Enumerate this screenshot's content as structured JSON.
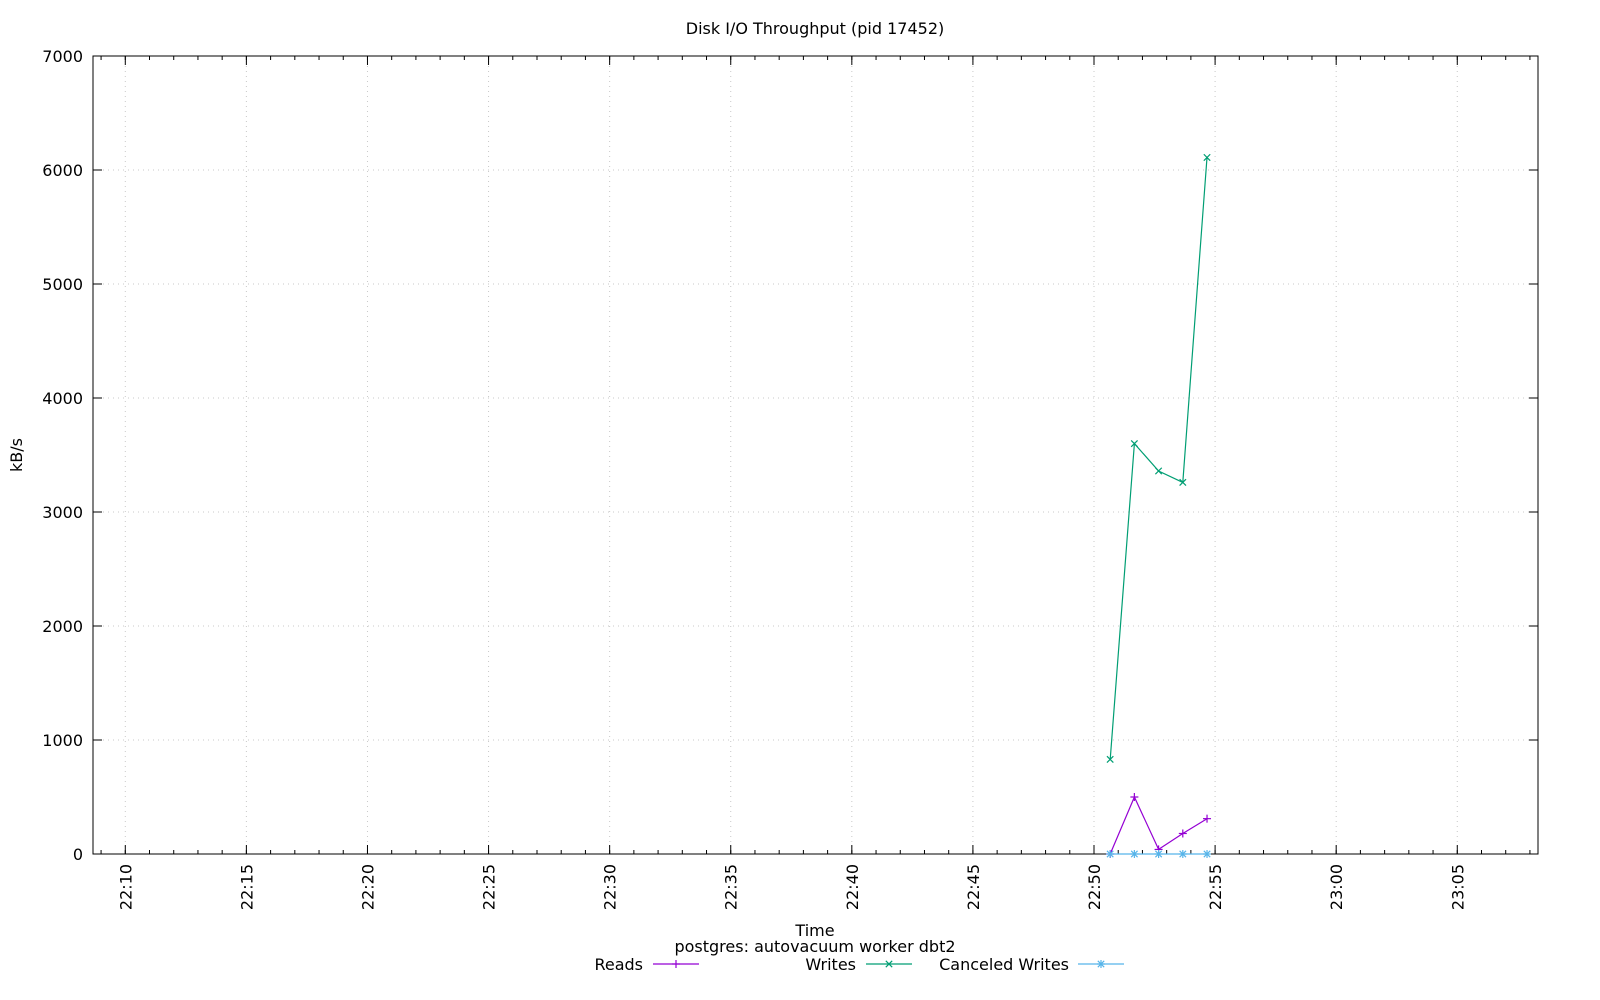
{
  "chart_data": {
    "type": "line",
    "title": "Disk I/O Throughput (pid 17452)",
    "xlabel": "Time",
    "subtitle": "postgres: autovacuum worker dbt2",
    "ylabel": "kB/s",
    "xlim": [
      "22:08:40",
      "23:08:20"
    ],
    "ylim": [
      0,
      7000
    ],
    "x_ticks": [
      "22:10",
      "22:15",
      "22:20",
      "22:25",
      "22:30",
      "22:35",
      "22:40",
      "22:45",
      "22:50",
      "22:55",
      "23:00",
      "23:05"
    ],
    "y_ticks": [
      0,
      1000,
      2000,
      3000,
      4000,
      5000,
      6000,
      7000
    ],
    "grid": true,
    "legend_position": "bottom",
    "series": [
      {
        "name": "Reads",
        "color": "#9400d3",
        "marker": "plus",
        "x": [
          "22:50:40",
          "22:51:40",
          "22:52:40",
          "22:53:40",
          "22:54:40"
        ],
        "values": [
          0,
          500,
          40,
          180,
          310
        ]
      },
      {
        "name": "Writes",
        "color": "#009e73",
        "marker": "cross",
        "x": [
          "22:50:40",
          "22:51:40",
          "22:52:40",
          "22:53:40",
          "22:54:40"
        ],
        "values": [
          830,
          3600,
          3360,
          3260,
          6110
        ]
      },
      {
        "name": "Canceled Writes",
        "color": "#56b4e9",
        "marker": "star",
        "x": [
          "22:50:40",
          "22:51:40",
          "22:52:40",
          "22:53:40",
          "22:54:40"
        ],
        "values": [
          0,
          0,
          0,
          0,
          0
        ]
      }
    ]
  }
}
